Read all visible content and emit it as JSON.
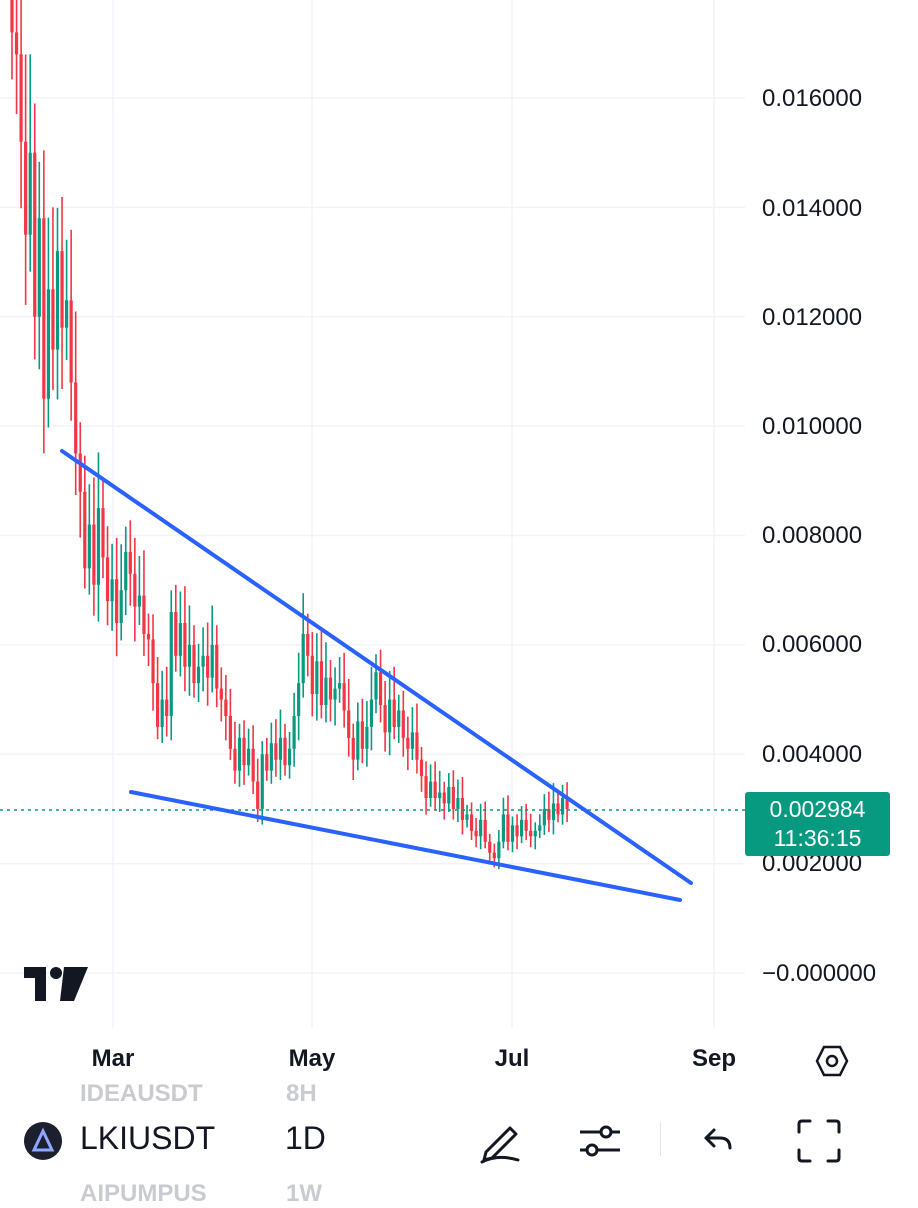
{
  "chart_data": {
    "type": "candlestick",
    "symbol": "LKIUSDT",
    "timeframe": "1D",
    "y_ticks": [
      "0.016000",
      "0.014000",
      "0.012000",
      "0.010000",
      "0.008000",
      "0.006000",
      "0.004000",
      "0.002000",
      "−0.000000"
    ],
    "x_ticks": [
      "Mar",
      "May",
      "Jul",
      "Sep"
    ],
    "last_price": "0.002984",
    "countdown": "11:36:15",
    "ylim": [
      -0.001,
      0.018
    ],
    "colors": {
      "up": "#089981",
      "down": "#f23645",
      "trendline": "#2962ff",
      "price_badge": "#089981"
    },
    "candles_close": [
      0.0172,
      0.0168,
      0.0152,
      0.0135,
      0.015,
      0.012,
      0.0138,
      0.0105,
      0.0125,
      0.0114,
      0.0132,
      0.0118,
      0.0123,
      0.0108,
      0.0095,
      0.0088,
      0.0074,
      0.0082,
      0.0071,
      0.0085,
      0.0076,
      0.0068,
      0.0072,
      0.0064,
      0.007,
      0.0077,
      0.0073,
      0.0067,
      0.0069,
      0.0062,
      0.0061,
      0.0053,
      0.0045,
      0.005,
      0.0047,
      0.0066,
      0.0058,
      0.0064,
      0.0056,
      0.006,
      0.0053,
      0.0056,
      0.0058,
      0.0054,
      0.006,
      0.0052,
      0.005,
      0.0047,
      0.0041,
      0.0037,
      0.0043,
      0.0038,
      0.0041,
      0.0035,
      0.003,
      0.004,
      0.0037,
      0.0042,
      0.0039,
      0.0043,
      0.0038,
      0.0041,
      0.0047,
      0.0053,
      0.0062,
      0.0058,
      0.0051,
      0.0057,
      0.0049,
      0.0054,
      0.005,
      0.0052,
      0.0053,
      0.0048,
      0.0043,
      0.0039,
      0.0046,
      0.0041,
      0.0045,
      0.005,
      0.0055,
      0.0049,
      0.0044,
      0.005,
      0.0045,
      0.0048,
      0.0043,
      0.0041,
      0.0044,
      0.0039,
      0.0036,
      0.0032,
      0.0035,
      0.0032,
      0.0033,
      0.0031,
      0.0034,
      0.003,
      0.0032,
      0.0028,
      0.0029,
      0.0026,
      0.0025,
      0.0028,
      0.0024,
      0.0022,
      0.0021,
      0.0024,
      0.0029,
      0.0024,
      0.0027,
      0.0025,
      0.0028,
      0.0026,
      0.0025,
      0.0026,
      0.0027,
      0.003,
      0.0028,
      0.0031,
      0.0029,
      0.0032,
      0.003
    ],
    "trendlines": [
      {
        "name": "upper",
        "from": {
          "x": 0.0,
          "y": 0.0095
        },
        "to": {
          "x": 1.0,
          "y": 0.0016
        }
      },
      {
        "name": "lower",
        "from": {
          "x": 0.0,
          "y": 0.0033
        },
        "to": {
          "x": 1.0,
          "y": 0.0014
        }
      }
    ]
  },
  "ui": {
    "symbol": "LKIUSDT",
    "timeframe": "1D",
    "ghost_above_symbol": "IDEAUSDT",
    "ghost_above_tf": "8H",
    "ghost_below_symbol": "AIPUMPUS",
    "ghost_below_tf": "1W",
    "icons": [
      "tradingview-logo-icon",
      "settings-hex-icon",
      "pencil-icon",
      "sliders-icon",
      "undo-icon",
      "fullscreen-icon"
    ]
  }
}
